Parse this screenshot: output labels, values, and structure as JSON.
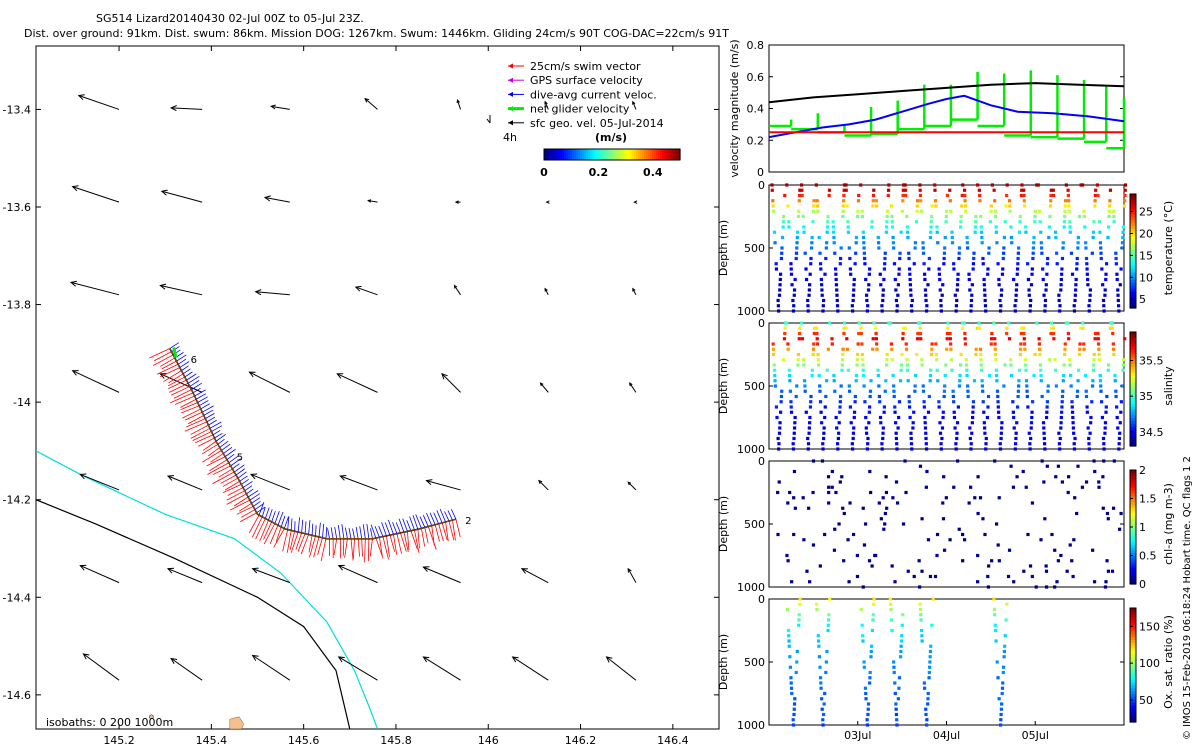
{
  "header": {
    "title": "SG514 Lizard20140430 02-Jul 00Z to 05-Jul 23Z.",
    "subtitle": "Dist. over ground: 91km. Dist. swum: 86km. Mission DOG: 1267km. Swum: 1446km. Gliding 24cm/s 90T COG-DAC=22cm/s 91T"
  },
  "credit": "© IMOS 15-Feb-2019 06:18:24 Hobart time. QC flags 1  2",
  "colors": {
    "swim": "#ff0000",
    "gps": "#cc00cc",
    "dac": "#0000ff",
    "net": "#00ee00",
    "sfc": "#000000",
    "isobath200": "#00dddd",
    "isobath1000": "#000000",
    "land": "#f4c090"
  },
  "chart_data": [
    {
      "type": "map",
      "name": "track_map",
      "xlim": [
        145.02,
        146.5
      ],
      "ylim": [
        -14.67,
        -13.27
      ],
      "xticks": [
        145.2,
        145.4,
        145.6,
        145.8,
        146,
        146.2,
        146.4
      ],
      "xtick_labels": [
        "145.2",
        "145.4",
        "145.6",
        "145.8",
        "146",
        "146.2",
        "146.4"
      ],
      "yticks": [
        -13.4,
        -13.6,
        -13.8,
        -14,
        -14.2,
        -14.4,
        -14.6
      ],
      "ytick_labels": [
        "-13.4",
        "-13.6",
        "-13.8",
        "-14",
        "-14.2",
        "-14.4",
        "-14.6"
      ],
      "legend": {
        "items": [
          "25cm/s swim vector",
          "GPS surface velocity",
          "dive-avg current veloc.",
          "net glider velocity",
          "sfc geo. vel. 05-Jul-2014"
        ],
        "scale_label": "4h",
        "colorbar_title": "(m/s)",
        "colorbar_ticks": [
          "0",
          "0.2",
          "0.4"
        ],
        "colorbar_range": [
          0,
          0.5
        ]
      },
      "isobaths_label": "isobaths: 0   200  1000m",
      "track": [
        [
          145.31,
          -13.89
        ],
        [
          145.36,
          -13.98
        ],
        [
          145.41,
          -14.08
        ],
        [
          145.46,
          -14.16
        ],
        [
          145.5,
          -14.23
        ],
        [
          145.56,
          -14.26
        ],
        [
          145.65,
          -14.28
        ],
        [
          145.75,
          -14.28
        ],
        [
          145.85,
          -14.26
        ],
        [
          145.93,
          -14.24
        ]
      ],
      "track_day_labels": [
        {
          "label": "6",
          "lon": 145.355,
          "lat": -13.92
        },
        {
          "label": "5",
          "lon": 145.455,
          "lat": -14.12
        },
        {
          "label": "2",
          "lon": 145.95,
          "lat": -14.25
        }
      ],
      "isobath_200": [
        [
          145.02,
          -14.1
        ],
        [
          145.12,
          -14.15
        ],
        [
          145.3,
          -14.23
        ],
        [
          145.45,
          -14.28
        ],
        [
          145.55,
          -14.35
        ],
        [
          145.65,
          -14.45
        ],
        [
          145.71,
          -14.55
        ],
        [
          145.74,
          -14.62
        ],
        [
          145.76,
          -14.67
        ]
      ],
      "isobath_1000": [
        [
          145.02,
          -14.2
        ],
        [
          145.15,
          -14.25
        ],
        [
          145.32,
          -14.32
        ],
        [
          145.5,
          -14.4
        ],
        [
          145.6,
          -14.46
        ],
        [
          145.67,
          -14.55
        ],
        [
          145.7,
          -14.67
        ]
      ],
      "land": [
        [
          145.44,
          -14.67
        ],
        [
          145.44,
          -14.65
        ],
        [
          145.46,
          -14.645
        ],
        [
          145.47,
          -14.66
        ],
        [
          145.465,
          -14.67
        ]
      ],
      "vector_grid": {
        "lons": [
          145.2,
          145.38,
          145.57,
          145.76,
          145.94,
          146.13,
          146.32
        ],
        "lats": [
          -13.4,
          -13.59,
          -13.78,
          -13.98,
          -14.18,
          -14.37,
          -14.57
        ],
        "u": [
          [
            -0.26,
            -0.2,
            -0.12,
            -0.08,
            -0.02,
            -0.02,
            -0.02
          ],
          [
            -0.3,
            -0.26,
            -0.16,
            -0.06,
            -0.03,
            -0.01,
            -0.01
          ],
          [
            -0.31,
            -0.27,
            -0.22,
            -0.14,
            -0.04,
            -0.02,
            -0.02
          ],
          [
            -0.3,
            -0.27,
            -0.26,
            -0.26,
            -0.12,
            -0.05,
            -0.04
          ],
          [
            -0.25,
            -0.22,
            -0.25,
            -0.24,
            -0.22,
            -0.06,
            -0.05
          ],
          [
            -0.25,
            -0.22,
            -0.24,
            -0.25,
            -0.24,
            -0.17,
            -0.05
          ],
          [
            -0.23,
            -0.2,
            -0.24,
            -0.25,
            -0.24,
            -0.23,
            -0.19
          ]
        ],
        "v": [
          [
            0.09,
            0.01,
            0.02,
            0.07,
            0.06,
            0.05,
            0.05
          ],
          [
            0.1,
            0.07,
            0.03,
            0.01,
            0.0,
            0.0,
            0.0
          ],
          [
            0.08,
            0.06,
            0.02,
            0.05,
            0.06,
            0.04,
            0.04
          ],
          [
            0.14,
            0.12,
            0.13,
            0.12,
            0.12,
            0.06,
            0.06
          ],
          [
            0.1,
            0.09,
            0.1,
            0.09,
            0.06,
            0.06,
            0.05
          ],
          [
            0.11,
            0.09,
            0.09,
            0.11,
            0.1,
            0.09,
            0.09
          ],
          [
            0.17,
            0.14,
            0.16,
            0.15,
            0.15,
            0.15,
            0.15
          ]
        ]
      }
    },
    {
      "type": "line",
      "name": "velocity",
      "ylabel": "velocity magnitude (m/s)",
      "xlim": [
        2.0,
        6.0
      ],
      "ylim": [
        0,
        0.8
      ],
      "yticks": [
        0,
        0.2,
        0.4,
        0.6,
        0.8
      ],
      "ytick_labels": [
        "0",
        "0.2",
        "0.4",
        "0.6",
        "0.8"
      ],
      "series": [
        {
          "name": "sfc geo",
          "color": "#000000",
          "x": [
            2.0,
            2.5,
            3.0,
            3.5,
            4.0,
            4.5,
            5.0,
            5.5,
            6.0
          ],
          "y": [
            0.44,
            0.47,
            0.49,
            0.51,
            0.53,
            0.55,
            0.56,
            0.55,
            0.54
          ]
        },
        {
          "name": "dive-avg",
          "color": "#0000ff",
          "x": [
            2.0,
            2.3,
            2.6,
            2.9,
            3.2,
            3.5,
            3.8,
            4.0,
            4.2,
            4.5,
            4.8,
            5.2,
            5.6,
            6.0
          ],
          "y": [
            0.22,
            0.25,
            0.28,
            0.3,
            0.33,
            0.38,
            0.43,
            0.46,
            0.48,
            0.42,
            0.38,
            0.37,
            0.35,
            0.32
          ]
        },
        {
          "name": "swim",
          "color": "#ff0000",
          "x": [
            2.0,
            6.0
          ],
          "y": [
            0.25,
            0.25
          ]
        }
      ],
      "net_velocity_segments": [
        [
          2.0,
          2.25,
          0.29
        ],
        [
          2.25,
          2.55,
          0.27
        ],
        [
          2.55,
          2.85,
          0.25
        ],
        [
          2.85,
          3.15,
          0.23
        ],
        [
          3.15,
          3.45,
          0.24
        ],
        [
          3.45,
          3.75,
          0.27
        ],
        [
          3.75,
          4.05,
          0.29
        ],
        [
          4.05,
          4.35,
          0.33
        ],
        [
          4.35,
          4.65,
          0.29
        ],
        [
          4.65,
          4.95,
          0.23
        ],
        [
          4.95,
          5.25,
          0.22
        ],
        [
          5.25,
          5.55,
          0.21
        ],
        [
          5.55,
          5.8,
          0.19
        ],
        [
          5.8,
          6.0,
          0.15
        ]
      ],
      "net_velocity_peaks": [
        0.33,
        0.37,
        0.3,
        0.41,
        0.45,
        0.55,
        0.55,
        0.63,
        0.62,
        0.64,
        0.61,
        0.58,
        0.55,
        0.47
      ]
    },
    {
      "type": "scatter",
      "name": "temperature",
      "ylabel": "Depth (m)",
      "clabel": "temperature (°C)",
      "ylim": [
        1000,
        0
      ],
      "yticks": [
        "0",
        "500",
        "1000"
      ],
      "ctick_values": [
        5,
        10,
        15,
        20,
        25
      ],
      "ctick_labels": [
        "5",
        "10",
        "15",
        "20",
        "25"
      ],
      "crange": [
        3,
        29
      ],
      "dives": 24,
      "max_depth": 1000,
      "profile": {
        "depth": [
          0,
          50,
          100,
          150,
          200,
          300,
          400,
          500,
          600,
          800,
          1000
        ],
        "value": [
          28,
          27,
          24,
          21,
          18,
          14,
          11,
          9,
          7,
          5,
          4.5
        ]
      }
    },
    {
      "type": "scatter",
      "name": "salinity",
      "ylabel": "Depth (m)",
      "clabel": "salinity",
      "ylim": [
        1000,
        0
      ],
      "yticks": [
        "0",
        "500",
        "1000"
      ],
      "ctick_values": [
        34.5,
        35,
        35.5
      ],
      "ctick_labels": [
        "34.5",
        "35",
        "35.5"
      ],
      "crange": [
        34.3,
        35.9
      ],
      "dives": 24,
      "max_depth": 1000,
      "profile": {
        "depth": [
          0,
          50,
          100,
          150,
          200,
          300,
          400,
          500,
          700,
          1000
        ],
        "value": [
          35.0,
          35.4,
          35.75,
          35.7,
          35.5,
          35.2,
          34.9,
          34.7,
          34.5,
          34.45
        ]
      }
    },
    {
      "type": "scatter",
      "name": "chl-a",
      "ylabel": "Depth (m)",
      "clabel": "chl-a (mg m-3)",
      "ylim": [
        1000,
        0
      ],
      "yticks": [
        "0",
        "500",
        "1000"
      ],
      "ctick_values": [
        0,
        0.5,
        1,
        1.5,
        2
      ],
      "ctick_labels": [
        "0",
        "0.5",
        "1",
        "1.5",
        "2"
      ],
      "crange": [
        0,
        2
      ],
      "dives": 24,
      "max_depth": 1000,
      "sparse": true,
      "profile": {
        "depth": [
          0,
          1000
        ],
        "value": [
          0.02,
          0.02
        ]
      }
    },
    {
      "type": "scatter",
      "name": "oxygen",
      "ylabel": "Depth (m)",
      "clabel": "Ox. sat. ratio (%)",
      "ylim": [
        1000,
        0
      ],
      "yticks": [
        "0",
        "500",
        "1000"
      ],
      "ctick_values": [
        50,
        100,
        150
      ],
      "ctick_labels": [
        "50",
        "100",
        "150"
      ],
      "crange": [
        20,
        175
      ],
      "dive_slots": [
        1,
        3,
        6,
        8,
        10,
        15
      ],
      "max_depth": 1000,
      "profile": {
        "depth": [
          0,
          100,
          200,
          400,
          700,
          1000
        ],
        "value": [
          120,
          100,
          80,
          65,
          55,
          50
        ]
      },
      "xticks": [
        3.0,
        4.0,
        5.0
      ],
      "xtick_labels": [
        "03Jul",
        "04Jul",
        "05Jul"
      ]
    }
  ]
}
